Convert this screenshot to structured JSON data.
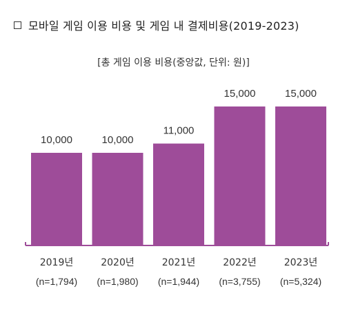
{
  "title": "모바일 게임 이용 비용 및 게임 내 결제비용(2019-2023)",
  "colors": {
    "bar": "#9e4c99",
    "axis": "#9e4c99"
  },
  "chart_data": {
    "type": "bar",
    "subtitle": "[총 게임 이용 비용(중앙값, 단위: 원)]",
    "categories": [
      "2019년",
      "2020년",
      "2021년",
      "2022년",
      "2023년"
    ],
    "sample_sizes": [
      "(n=1,794)",
      "(n=1,980)",
      "(n=1,944)",
      "(n=3,755)",
      "(n=5,324)"
    ],
    "values": [
      10000,
      10000,
      11000,
      15000,
      15000
    ],
    "value_labels": [
      "10,000",
      "10,000",
      "11,000",
      "15,000",
      "15,000"
    ],
    "ylim": [
      0,
      15000
    ],
    "grid": false,
    "legend": "none"
  }
}
